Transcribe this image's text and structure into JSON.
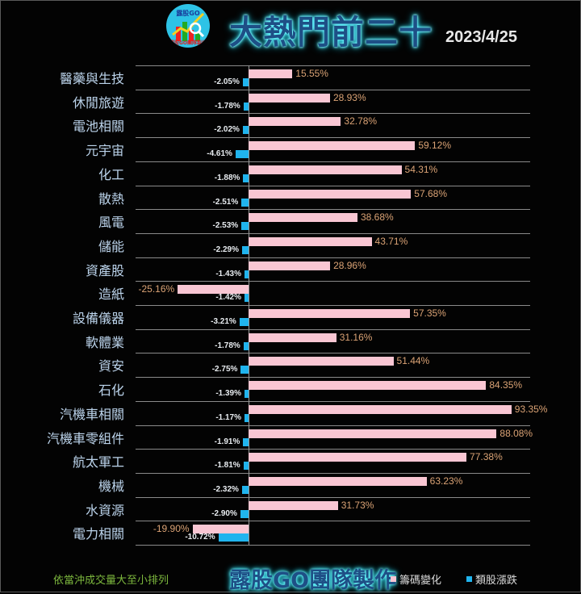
{
  "header": {
    "logo_text": "露股GO",
    "logo_subtext": "露股GO團隊製作",
    "title": "大熱門前二十",
    "date": "2023/4/25"
  },
  "footer": {
    "note": "依當沖成交量大至小排列",
    "brand": "露股GO團隊製作",
    "legend": [
      {
        "label": "籌碼變化",
        "color": "#f9c6d3"
      },
      {
        "label": "類股漲跌",
        "color": "#20b4ee"
      }
    ]
  },
  "colors": {
    "chip_change": "#f9c6d3",
    "sector_change": "#20b4ee",
    "chip_label": "#dba375",
    "category_label": "#bcd4ec",
    "title": "#1e4f86",
    "title_glow": "#33eeff",
    "note": "#7db83e"
  },
  "chart_data": {
    "type": "bar",
    "orientation": "horizontal",
    "title": "大熱門前二十",
    "subtitle": "2023/4/25",
    "xlabel": "",
    "ylabel": "",
    "grid": true,
    "legend_position": "bottom-right",
    "annotation": "依當沖成交量大至小排列",
    "categories": [
      "醫藥與生技",
      "休閒旅遊",
      "電池相關",
      "元宇宙",
      "化工",
      "散熱",
      "風電",
      "儲能",
      "資產股",
      "造紙",
      "設備儀器",
      "軟體業",
      "資安",
      "石化",
      "汽機車相關",
      "汽機車零組件",
      "航太軍工",
      "機械",
      "水資源",
      "電力相關"
    ],
    "series": [
      {
        "name": "籌碼變化",
        "values": [
          15.55,
          28.93,
          32.78,
          59.12,
          54.31,
          57.68,
          38.68,
          43.71,
          28.96,
          -25.16,
          57.35,
          31.16,
          51.44,
          84.35,
          93.35,
          88.08,
          77.38,
          63.23,
          31.73,
          -19.9
        ],
        "labels": [
          "15.55%",
          "28.93%",
          "32.78%",
          "59.12%",
          "54.31%",
          "57.68%",
          "38.68%",
          "43.71%",
          "28.96%",
          "-25.16%",
          "57.35%",
          "31.16%",
          "51.44%",
          "84.35%",
          "93.35%",
          "88.08%",
          "77.38%",
          "63.23%",
          "31.73%",
          "-19.90%"
        ]
      },
      {
        "name": "類股漲跌",
        "values": [
          -2.05,
          -1.78,
          -2.02,
          -4.61,
          -1.88,
          -2.51,
          -2.53,
          -2.29,
          -1.43,
          -1.42,
          -3.21,
          -1.78,
          -2.75,
          -1.39,
          -1.17,
          -1.91,
          -1.81,
          -2.32,
          -2.9,
          -10.72
        ],
        "labels": [
          "-2.05%",
          "-1.78%",
          "-2.02%",
          "-4.61%",
          "-1.88%",
          "-2.51%",
          "-2.53%",
          "-2.29%",
          "-1.43%",
          "-1.42%",
          "-3.21%",
          "-1.78%",
          "-2.75%",
          "-1.39%",
          "-1.17%",
          "-1.91%",
          "-1.81%",
          "-2.32%",
          "-2.90%",
          "-10.72%"
        ]
      }
    ]
  }
}
